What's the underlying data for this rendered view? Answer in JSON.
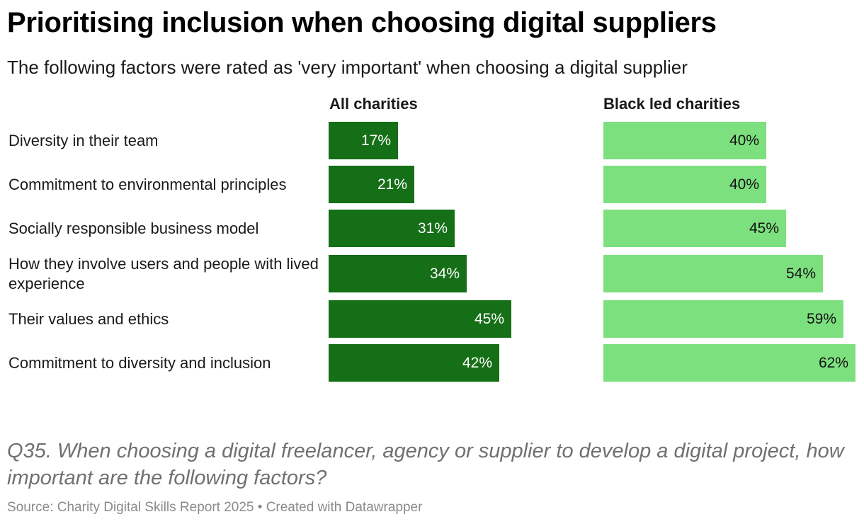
{
  "header": {
    "title": "Prioritising inclusion when choosing digital suppliers",
    "subtitle": "The following factors were rated as 'very important' when choosing a digital supplier"
  },
  "footer": {
    "note": "Q35. When choosing a digital freelancer, agency or supplier to develop a digital project, how important are the following factors?",
    "source": "Source: Charity Digital Skills Report 2025 • Created with Datawrapper"
  },
  "colors": {
    "all_charities": "#156f16",
    "black_led_charities": "#7de07f"
  },
  "chart_data": {
    "type": "bar",
    "orientation": "horizontal",
    "title": "Prioritising inclusion when choosing digital suppliers",
    "subtitle": "The following factors were rated as 'very important' when choosing a digital supplier",
    "categories": [
      "Diversity in their team",
      "Commitment to environmental principles",
      "Socially responsible business model",
      "How they involve users and people with lived experience",
      "Their values and ethics",
      "Commitment to diversity and inclusion"
    ],
    "series": [
      {
        "name": "All charities",
        "values": [
          17,
          21,
          31,
          34,
          45,
          42
        ],
        "labels": [
          "17%",
          "21%",
          "31%",
          "34%",
          "45%",
          "42%"
        ]
      },
      {
        "name": "Black led charities",
        "values": [
          40,
          40,
          45,
          54,
          59,
          62
        ],
        "labels": [
          "40%",
          "40%",
          "45%",
          "54%",
          "59%",
          "62%"
        ]
      }
    ],
    "unit": "%",
    "xlim": [
      0,
      62
    ],
    "grid": false,
    "legend": "column-headers"
  }
}
